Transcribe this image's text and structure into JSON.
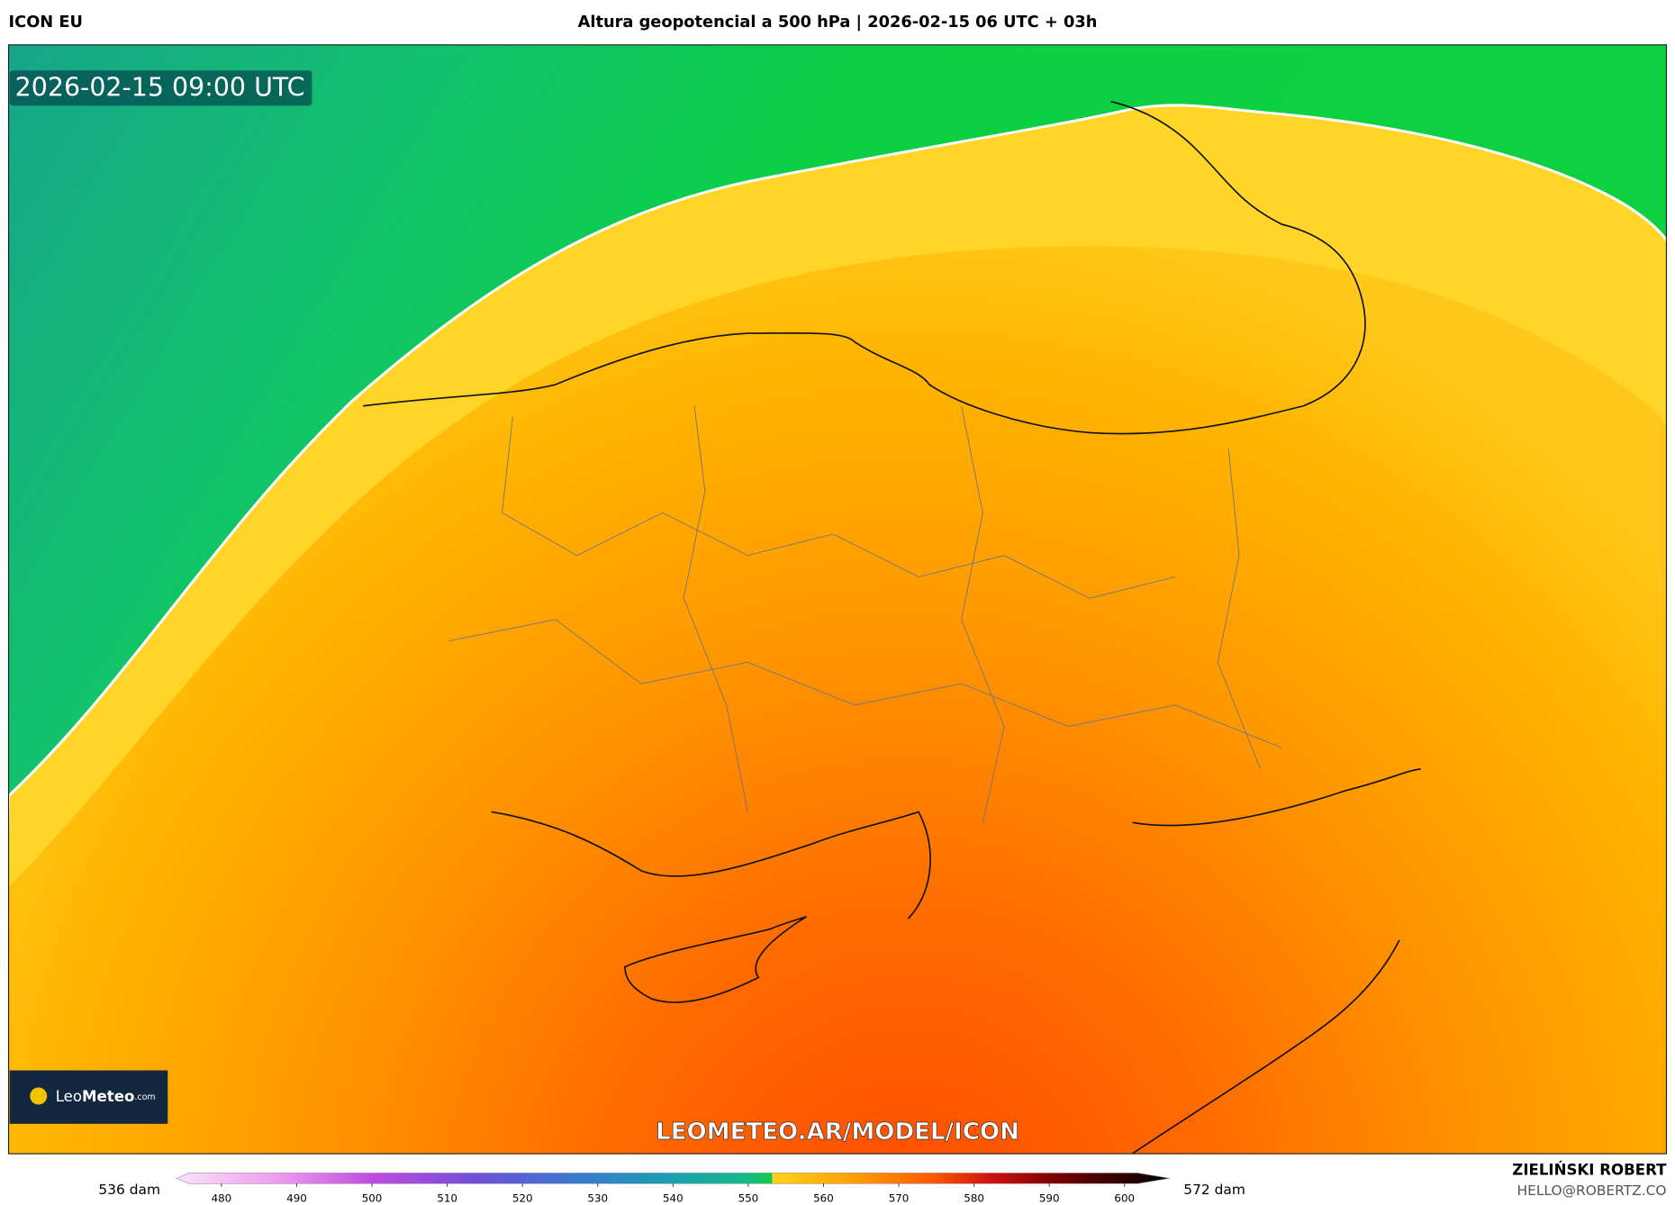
{
  "header": {
    "model": "ICON EU",
    "title": "Altura geopotencial a 500 hPa | 2026-02-15 06 UTC + 03h"
  },
  "map": {
    "valid_time": "2026-02-15 09:00 UTC",
    "watermark": "LEOMETEO.AR/MODEL/ICON",
    "logo": {
      "name": "Leo",
      "brand": "Meteo",
      "suffix": ".com"
    }
  },
  "colorbar": {
    "lim": [
      474,
      606
    ],
    "ticks": [
      480,
      490,
      500,
      510,
      520,
      530,
      540,
      550,
      560,
      570,
      580,
      590,
      600
    ],
    "min_label": "536 dam",
    "max_label": "572 dam"
  },
  "footer": {
    "author": "ZIELIŃSKI ROBERT",
    "contact": "HELLO@ROBERTZ.CO"
  }
}
